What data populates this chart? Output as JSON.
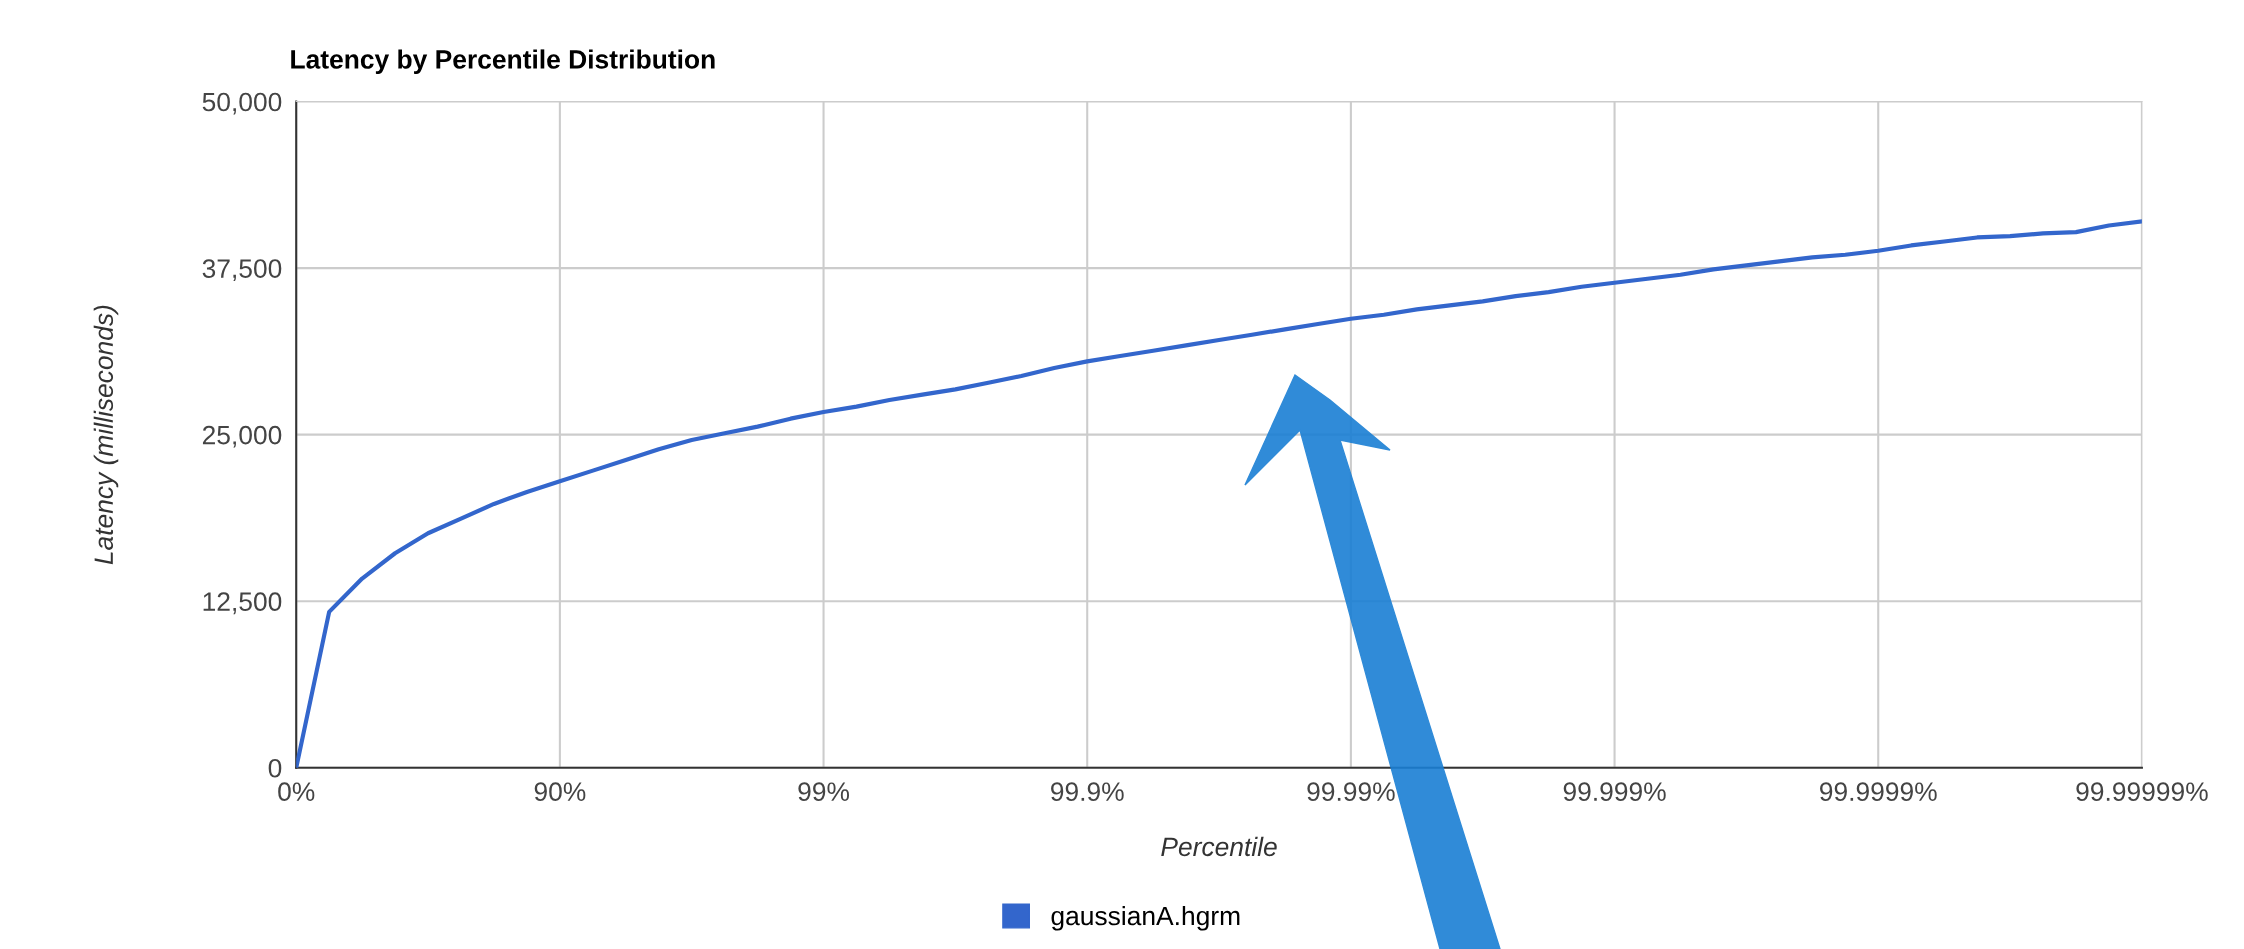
{
  "chart_data": {
    "type": "line",
    "title": "Latency by Percentile Distribution",
    "xlabel": "Percentile",
    "ylabel": "Latency (milliseconds)",
    "categories": [
      "0%",
      null,
      null,
      null,
      null,
      null,
      null,
      null,
      "90%",
      null,
      null,
      null,
      null,
      null,
      null,
      null,
      "99%",
      null,
      null,
      null,
      null,
      null,
      null,
      null,
      "99.9%",
      null,
      null,
      null,
      null,
      null,
      null,
      null,
      "99.99%",
      null,
      null,
      null,
      null,
      null,
      null,
      null,
      "99.999%",
      null,
      null,
      null,
      null,
      null,
      null,
      null,
      "99.9999%",
      null,
      null,
      null,
      null,
      null,
      null,
      null,
      "99.99999%"
    ],
    "series": [
      {
        "name": "gaussianA.hgrm",
        "color": "#3366cc",
        "values": [
          0,
          11700,
          14200,
          16100,
          17600,
          18700,
          19800,
          20700,
          21500,
          22300,
          23100,
          23900,
          24600,
          25100,
          25600,
          26200,
          26700,
          27100,
          27600,
          28000,
          28400,
          28900,
          29400,
          30000,
          30500,
          30900,
          31300,
          31700,
          32100,
          32500,
          32900,
          33300,
          33700,
          34000,
          34400,
          34700,
          35000,
          35400,
          35700,
          36100,
          36400,
          36700,
          37000,
          37400,
          37700,
          38000,
          38300,
          38500,
          38800,
          39200,
          39500,
          39800,
          39900,
          40100,
          40200,
          40700,
          41000
        ]
      }
    ],
    "ylim": [
      0,
      50000
    ],
    "yticks": [
      0,
      {
        "value": 12500,
        "label": "12,500"
      },
      {
        "value": 25000,
        "label": "25,000"
      },
      {
        "value": 37500,
        "label": "37,500"
      },
      {
        "value": 50000,
        "label": "50,000"
      }
    ],
    "grid": true,
    "legend": "bottom",
    "marker": "none",
    "line_style": "solid"
  }
}
